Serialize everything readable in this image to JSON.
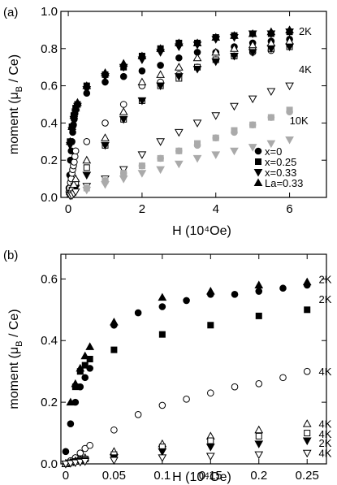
{
  "chart_data": [
    {
      "type": "scatter",
      "panel": "(a)",
      "xlabel": "H",
      "xunit": "(10⁴Oe)",
      "ylabel": "moment (μ",
      "ylabel_sub": "B",
      "ylabel_tail": " / Ce)",
      "xlim": [
        -0.2,
        7.0
      ],
      "ylim": [
        0,
        1.0
      ],
      "xticks": [
        0,
        2,
        4,
        6
      ],
      "xtick_labels": [
        "0",
        "2",
        "4",
        "6"
      ],
      "yticks": [
        0.0,
        0.2,
        0.4,
        0.6,
        0.8,
        1.0
      ],
      "ytick_labels": [
        "0.0",
        "0.2",
        "0.4",
        "0.6",
        "0.8",
        "1.0"
      ],
      "legend": {
        "position": "bottom-right",
        "entries": [
          {
            "label": "x=0",
            "marker": "circle"
          },
          {
            "label": "x=0.25",
            "marker": "square"
          },
          {
            "label": "x=0.33",
            "marker": "triangle-down"
          },
          {
            "label": "La=0.33",
            "marker": "triangle-up"
          }
        ]
      },
      "annotations": [
        {
          "text": "2K",
          "x": 6.25,
          "y": 0.895
        },
        {
          "text": "4K",
          "x": 6.25,
          "y": 0.69
        },
        {
          "text": "10K",
          "x": 6.0,
          "y": 0.415
        }
      ],
      "series": [
        {
          "temp": "2K",
          "marker": "circle",
          "fill": "black",
          "color": "#000000",
          "x": [
            0.02,
            0.04,
            0.06,
            0.08,
            0.1,
            0.12,
            0.14,
            0.16,
            0.18,
            0.2,
            0.5,
            1.0,
            1.5,
            2.0,
            2.5,
            3.0,
            3.5,
            4.0,
            4.5,
            5.0,
            5.5,
            6.0
          ],
          "y": [
            0.05,
            0.12,
            0.2,
            0.25,
            0.3,
            0.35,
            0.39,
            0.42,
            0.45,
            0.47,
            0.56,
            0.62,
            0.65,
            0.68,
            0.71,
            0.75,
            0.78,
            0.78,
            0.81,
            0.83,
            0.84,
            0.85
          ]
        },
        {
          "temp": "2K",
          "marker": "square",
          "fill": "black",
          "color": "#000000",
          "x": [
            0.05,
            0.1,
            0.15,
            0.2,
            0.25,
            0.5,
            1.0,
            1.5,
            2.0,
            2.5,
            3.0,
            3.5,
            4.0,
            4.5,
            5.0,
            5.5,
            6.0
          ],
          "y": [
            0.3,
            0.38,
            0.44,
            0.48,
            0.5,
            0.6,
            0.66,
            0.7,
            0.76,
            0.8,
            0.83,
            0.83,
            0.86,
            0.87,
            0.88,
            0.88,
            0.89
          ]
        },
        {
          "temp": "2K",
          "marker": "triangle-down",
          "fill": "black",
          "color": "#000000",
          "x": [
            0.05,
            0.1,
            0.15,
            0.2,
            0.25,
            0.5,
            1.0,
            1.5,
            2.0,
            2.5,
            3.0,
            3.5,
            4.0,
            4.5,
            5.0,
            5.5,
            6.0
          ],
          "y": [
            0.28,
            0.36,
            0.42,
            0.46,
            0.49,
            0.58,
            0.65,
            0.7,
            0.74,
            0.78,
            0.81,
            0.82,
            0.85,
            0.86,
            0.88,
            0.88,
            0.89
          ]
        },
        {
          "temp": "2K",
          "marker": "triangle-up",
          "fill": "black",
          "color": "#000000",
          "x": [
            0.05,
            0.1,
            0.15,
            0.2,
            0.25,
            0.5,
            1.0,
            1.5,
            2.0,
            2.5,
            3.0,
            3.5,
            4.0,
            4.5,
            5.0,
            5.5,
            6.0
          ],
          "y": [
            0.3,
            0.38,
            0.44,
            0.48,
            0.51,
            0.6,
            0.67,
            0.72,
            0.76,
            0.8,
            0.83,
            0.83,
            0.86,
            0.87,
            0.88,
            0.89,
            0.9
          ]
        },
        {
          "temp": "4K",
          "marker": "circle",
          "fill": "open",
          "color": "#000000",
          "x": [
            0.02,
            0.04,
            0.06,
            0.08,
            0.1,
            0.12,
            0.14,
            0.16,
            0.18,
            0.2,
            0.5,
            1.0,
            1.5,
            2.0,
            2.5,
            3.0,
            3.5,
            4.0,
            4.5,
            5.0,
            5.5,
            6.0
          ],
          "y": [
            0.03,
            0.05,
            0.08,
            0.1,
            0.13,
            0.15,
            0.17,
            0.19,
            0.22,
            0.25,
            0.3,
            0.4,
            0.5,
            0.6,
            0.62,
            0.66,
            0.7,
            0.74,
            0.76,
            0.78,
            0.79,
            0.82
          ]
        },
        {
          "temp": "4K",
          "marker": "square",
          "fill": "open",
          "color": "#000000",
          "x": [
            0.05,
            0.1,
            0.15,
            0.2,
            0.5,
            1.0,
            1.5,
            2.0,
            2.5,
            3.0,
            3.5,
            4.0,
            4.5,
            5.0,
            5.5,
            6.0
          ],
          "y": [
            0.02,
            0.04,
            0.06,
            0.08,
            0.16,
            0.28,
            0.42,
            0.52,
            0.6,
            0.64,
            0.7,
            0.74,
            0.76,
            0.79,
            0.8,
            0.81
          ]
        },
        {
          "temp": "4K",
          "marker": "triangle-down",
          "fill": "black",
          "color": "#000000",
          "x": [
            0.05,
            0.1,
            0.15,
            0.2,
            0.5,
            1.0,
            1.5,
            2.0,
            2.5,
            3.0,
            3.5,
            4.0,
            4.5,
            5.0,
            5.5,
            6.0
          ],
          "y": [
            0.01,
            0.02,
            0.03,
            0.05,
            0.12,
            0.28,
            0.42,
            0.52,
            0.6,
            0.65,
            0.69,
            0.73,
            0.76,
            0.78,
            0.8,
            0.81
          ]
        },
        {
          "temp": "4K",
          "marker": "triangle-up",
          "fill": "open",
          "color": "#000000",
          "x": [
            0.05,
            0.1,
            0.15,
            0.2,
            0.5,
            1.0,
            1.5,
            2.0,
            2.5,
            3.0,
            3.5,
            4.0,
            4.5,
            5.0,
            5.5,
            6.0
          ],
          "y": [
            0.03,
            0.05,
            0.07,
            0.1,
            0.2,
            0.32,
            0.46,
            0.62,
            0.66,
            0.7,
            0.75,
            0.78,
            0.8,
            0.82,
            0.83,
            0.84
          ]
        },
        {
          "temp": "4K",
          "marker": "triangle-down",
          "fill": "open",
          "color": "#000000",
          "x": [
            0.05,
            0.1,
            0.15,
            0.2,
            0.5,
            1.0,
            1.5,
            2.0,
            2.5,
            3.0,
            3.5,
            4.0,
            4.5,
            5.0,
            5.5,
            6.0
          ],
          "y": [
            0.01,
            0.01,
            0.02,
            0.03,
            0.06,
            0.1,
            0.15,
            0.23,
            0.3,
            0.35,
            0.4,
            0.44,
            0.49,
            0.53,
            0.57,
            0.6
          ]
        },
        {
          "temp": "10K",
          "marker": "circle",
          "fill": "grey",
          "color": "#aaaaaa",
          "x": [
            0.5,
            1.0,
            1.5,
            2.0,
            2.5,
            3.0,
            3.5,
            4.0,
            4.5,
            5.0,
            5.5,
            6.0
          ],
          "y": [
            0.05,
            0.09,
            0.13,
            0.17,
            0.21,
            0.25,
            0.28,
            0.32,
            0.35,
            0.39,
            0.43,
            0.46
          ]
        },
        {
          "temp": "10K",
          "marker": "square",
          "fill": "grey",
          "color": "#aaaaaa",
          "x": [
            0.5,
            1.0,
            1.5,
            2.0,
            2.5,
            3.0,
            3.5,
            4.0,
            4.5,
            5.0,
            5.5,
            6.0
          ],
          "y": [
            0.05,
            0.09,
            0.13,
            0.17,
            0.21,
            0.25,
            0.29,
            0.32,
            0.36,
            0.39,
            0.43,
            0.47
          ]
        },
        {
          "temp": "10K",
          "marker": "triangle-down",
          "fill": "grey",
          "color": "#aaaaaa",
          "x": [
            0.5,
            1.0,
            1.5,
            2.0,
            2.5,
            3.0,
            3.5,
            4.0,
            4.5,
            5.0,
            5.5,
            6.0
          ],
          "y": [
            0.04,
            0.07,
            0.1,
            0.13,
            0.15,
            0.18,
            0.21,
            0.23,
            0.25,
            0.27,
            0.29,
            0.31
          ]
        }
      ]
    },
    {
      "type": "scatter",
      "panel": "(b)",
      "xlabel": "H",
      "xunit": "(10⁴Oe)",
      "ylabel": "moment (μ",
      "ylabel_sub": "B",
      "ylabel_tail": " / Ce)",
      "xlim": [
        -0.005,
        0.27
      ],
      "ylim": [
        0,
        0.68
      ],
      "xticks": [
        0,
        0.05,
        0.1,
        0.15,
        0.2,
        0.25
      ],
      "xtick_labels": [
        "0",
        "0.05",
        "0.1",
        "0.15",
        "0.2",
        "0.25"
      ],
      "yticks": [
        0.0,
        0.2,
        0.4,
        0.6
      ],
      "ytick_labels": [
        "0.0",
        "0.2",
        "0.4",
        "0.6"
      ],
      "annotations": [
        {
          "text": "2K",
          "x": 0.262,
          "y": 0.6
        },
        {
          "text": "2K",
          "x": 0.262,
          "y": 0.535
        },
        {
          "text": "4K",
          "x": 0.262,
          "y": 0.3
        },
        {
          "text": "4K",
          "x": 0.262,
          "y": 0.13
        },
        {
          "text": "4K",
          "x": 0.262,
          "y": 0.098
        },
        {
          "text": "2K",
          "x": 0.262,
          "y": 0.068
        },
        {
          "text": "4K",
          "x": 0.262,
          "y": 0.036
        }
      ],
      "series": [
        {
          "temp": "2K",
          "marker": "circle",
          "fill": "black",
          "x": [
            0.0,
            0.005,
            0.01,
            0.015,
            0.02,
            0.025,
            0.05,
            0.075,
            0.1,
            0.125,
            0.15,
            0.175,
            0.2,
            0.225,
            0.25
          ],
          "y": [
            0.04,
            0.13,
            0.2,
            0.25,
            0.28,
            0.31,
            0.45,
            0.49,
            0.51,
            0.53,
            0.55,
            0.55,
            0.56,
            0.57,
            0.58
          ]
        },
        {
          "temp": "2K",
          "marker": "square",
          "fill": "black",
          "x": [
            0.01,
            0.015,
            0.02,
            0.025,
            0.05,
            0.1,
            0.15,
            0.2,
            0.25
          ],
          "y": [
            0.25,
            0.3,
            0.32,
            0.34,
            0.37,
            0.42,
            0.45,
            0.48,
            0.5
          ]
        },
        {
          "temp": "2K",
          "marker": "triangle-up",
          "fill": "black",
          "x": [
            0.005,
            0.01,
            0.015,
            0.02,
            0.025,
            0.05,
            0.1,
            0.15,
            0.2,
            0.25
          ],
          "y": [
            0.2,
            0.26,
            0.31,
            0.35,
            0.38,
            0.46,
            0.54,
            0.56,
            0.58,
            0.59
          ]
        },
        {
          "temp": "4K",
          "marker": "circle",
          "fill": "open",
          "x": [
            0.0,
            0.005,
            0.01,
            0.015,
            0.02,
            0.025,
            0.05,
            0.075,
            0.1,
            0.125,
            0.15,
            0.175,
            0.2,
            0.225,
            0.25
          ],
          "y": [
            0.0,
            0.01,
            0.02,
            0.035,
            0.05,
            0.06,
            0.11,
            0.16,
            0.19,
            0.21,
            0.23,
            0.25,
            0.26,
            0.28,
            0.3
          ]
        },
        {
          "temp": "4K",
          "marker": "triangle-up",
          "fill": "open",
          "x": [
            0.0,
            0.005,
            0.01,
            0.015,
            0.02,
            0.05,
            0.1,
            0.15,
            0.2,
            0.25
          ],
          "y": [
            0.0,
            0.005,
            0.01,
            0.015,
            0.02,
            0.04,
            0.065,
            0.09,
            0.11,
            0.13
          ]
        },
        {
          "temp": "4K",
          "marker": "square",
          "fill": "open",
          "x": [
            0.0,
            0.005,
            0.01,
            0.015,
            0.02,
            0.05,
            0.1,
            0.15,
            0.2,
            0.25
          ],
          "y": [
            0.0,
            0.004,
            0.008,
            0.012,
            0.016,
            0.03,
            0.055,
            0.075,
            0.09,
            0.1
          ]
        },
        {
          "temp": "2K",
          "marker": "triangle-down",
          "fill": "black",
          "x": [
            0.0,
            0.005,
            0.01,
            0.015,
            0.02,
            0.05,
            0.1,
            0.15,
            0.2,
            0.25
          ],
          "y": [
            0.0,
            0.003,
            0.006,
            0.009,
            0.012,
            0.02,
            0.04,
            0.055,
            0.065,
            0.075
          ]
        },
        {
          "temp": "4K",
          "marker": "triangle-down",
          "fill": "open",
          "x": [
            0.0,
            0.005,
            0.01,
            0.015,
            0.02,
            0.05,
            0.1,
            0.15,
            0.2,
            0.25
          ],
          "y": [
            0.0,
            0.002,
            0.004,
            0.006,
            0.008,
            0.012,
            0.02,
            0.025,
            0.03,
            0.035
          ]
        }
      ]
    }
  ]
}
